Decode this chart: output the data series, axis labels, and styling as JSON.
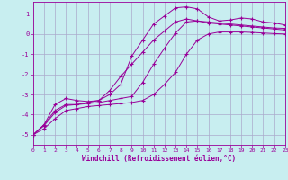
{
  "xlabel": "Windchill (Refroidissement éolien,°C)",
  "ylabel": "",
  "background_color": "#c8eef0",
  "grid_color": "#aaaacc",
  "line_color": "#990099",
  "xlim": [
    0,
    23
  ],
  "ylim": [
    -5.5,
    1.6
  ],
  "xticks": [
    0,
    1,
    2,
    3,
    4,
    5,
    6,
    7,
    8,
    9,
    10,
    11,
    12,
    13,
    14,
    15,
    16,
    17,
    18,
    19,
    20,
    21,
    22,
    23
  ],
  "yticks": [
    -5,
    -4,
    -3,
    -2,
    -1,
    0,
    1
  ],
  "series": [
    {
      "x": [
        0,
        1,
        2,
        3,
        4,
        5,
        6,
        7,
        8,
        9,
        10,
        11,
        12,
        13,
        14,
        15,
        16,
        17,
        18,
        19,
        20,
        21,
        22,
        23
      ],
      "y": [
        -5.0,
        -4.5,
        -3.8,
        -3.5,
        -3.5,
        -3.4,
        -3.3,
        -3.0,
        -2.5,
        -1.1,
        -0.3,
        0.5,
        0.9,
        1.3,
        1.35,
        1.25,
        0.85,
        0.65,
        0.7,
        0.8,
        0.75,
        0.6,
        0.55,
        0.45
      ]
    },
    {
      "x": [
        0,
        1,
        2,
        3,
        4,
        5,
        6,
        7,
        8,
        9,
        10,
        11,
        12,
        13,
        14,
        15,
        16,
        17,
        18,
        19,
        20,
        21,
        22,
        23
      ],
      "y": [
        -5.0,
        -4.5,
        -3.5,
        -3.2,
        -3.3,
        -3.35,
        -3.3,
        -2.8,
        -2.1,
        -1.5,
        -0.9,
        -0.3,
        0.15,
        0.6,
        0.75,
        0.65,
        0.55,
        0.5,
        0.45,
        0.4,
        0.35,
        0.3,
        0.25,
        0.2
      ]
    },
    {
      "x": [
        0,
        1,
        2,
        3,
        4,
        5,
        6,
        7,
        8,
        9,
        10,
        11,
        12,
        13,
        14,
        15,
        16,
        17,
        18,
        19,
        20,
        21,
        22,
        23
      ],
      "y": [
        -5.0,
        -4.55,
        -3.9,
        -3.55,
        -3.5,
        -3.45,
        -3.4,
        -3.3,
        -3.2,
        -3.1,
        -2.4,
        -1.5,
        -0.7,
        0.05,
        0.6,
        0.65,
        0.6,
        0.55,
        0.5,
        0.45,
        0.4,
        0.35,
        0.3,
        0.28
      ]
    },
    {
      "x": [
        0,
        1,
        2,
        3,
        4,
        5,
        6,
        7,
        8,
        9,
        10,
        11,
        12,
        13,
        14,
        15,
        16,
        17,
        18,
        19,
        20,
        21,
        22,
        23
      ],
      "y": [
        -5.0,
        -4.7,
        -4.2,
        -3.8,
        -3.7,
        -3.6,
        -3.55,
        -3.5,
        -3.45,
        -3.4,
        -3.3,
        -3.0,
        -2.5,
        -1.9,
        -1.0,
        -0.3,
        0.0,
        0.1,
        0.1,
        0.1,
        0.08,
        0.05,
        0.02,
        0.0
      ]
    }
  ]
}
